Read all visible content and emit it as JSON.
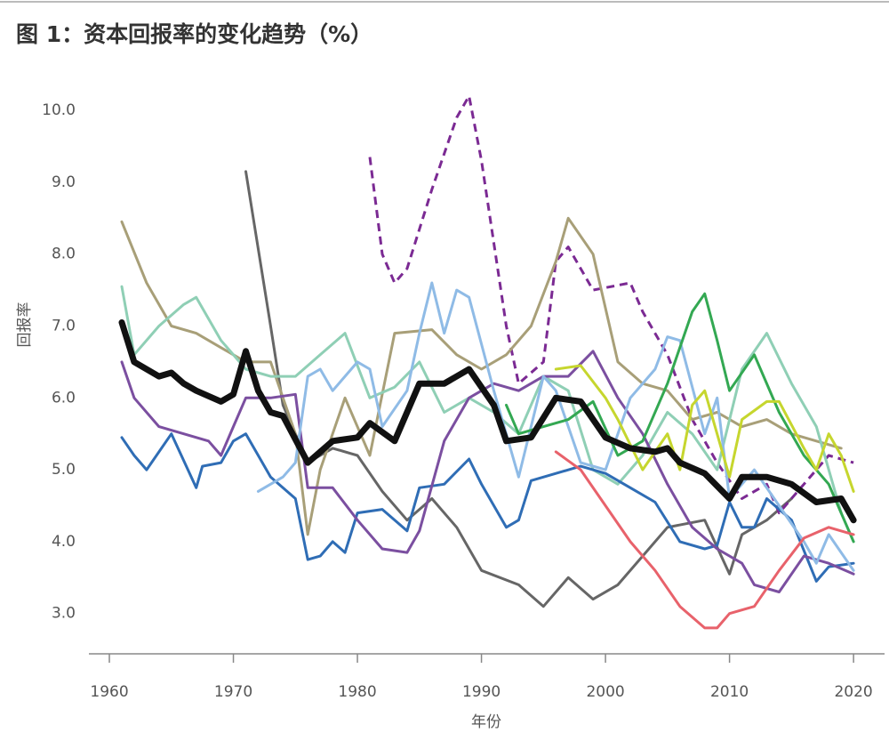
{
  "chart_data": {
    "type": "line",
    "title": "图 1：资本回报率的变化趋势（%）",
    "x_label": "年份",
    "y_label": "回报率",
    "xlim": [
      1958.35,
      2022.5
    ],
    "xticks": [
      1960,
      1970,
      1980,
      1990,
      2000,
      2010,
      2020
    ],
    "ylim": [
      2.44,
      10.36
    ],
    "yticks": [
      {
        "value": 3,
        "label": "3.0"
      },
      {
        "value": 4,
        "label": "4.0"
      },
      {
        "value": 5,
        "label": "5.0"
      },
      {
        "value": 6,
        "label": "6.0"
      },
      {
        "value": 7,
        "label": "7.0"
      },
      {
        "value": 8,
        "label": "8.0"
      },
      {
        "value": 9,
        "label": "9.0"
      },
      {
        "value": 10,
        "label": "10.0"
      }
    ],
    "grid": false,
    "series": [
      {
        "color": "#666666",
        "linewidth": 3,
        "style": "solid",
        "x": [
          1971,
          1973,
          1974,
          1976,
          1978,
          1980,
          1982,
          1984,
          1986,
          1988,
          1990,
          1993,
          1995,
          1997,
          1999,
          2001,
          2003,
          2005,
          2008,
          2010,
          2011,
          2013,
          2015
        ],
        "values": [
          9.15,
          7.0,
          5.9,
          5.1,
          5.3,
          5.2,
          4.7,
          4.3,
          4.6,
          4.2,
          3.6,
          3.4,
          3.1,
          3.5,
          3.2,
          3.4,
          3.8,
          4.2,
          4.3,
          3.55,
          4.1,
          4.3,
          4.6
        ]
      },
      {
        "color": "#7b2a93",
        "linewidth": 3,
        "style": "dashed",
        "x": [
          1981,
          1982,
          1983,
          1984,
          1986,
          1988,
          1989,
          1990,
          1992,
          1993,
          1995,
          1996,
          1997,
          1999,
          2002,
          2003,
          2005,
          2007,
          2009,
          2011,
          2013,
          2014,
          2016,
          2018,
          2020
        ],
        "values": [
          9.35,
          8.0,
          7.6,
          7.8,
          8.9,
          9.9,
          10.2,
          9.3,
          7.0,
          6.2,
          6.5,
          7.9,
          8.1,
          7.5,
          7.6,
          7.2,
          6.6,
          5.7,
          5.1,
          4.6,
          4.8,
          4.4,
          4.8,
          5.2,
          5.1
        ]
      },
      {
        "color": "#a89f78",
        "linewidth": 3,
        "style": "solid",
        "x": [
          1961,
          1963,
          1965,
          1967,
          1969,
          1971,
          1973,
          1975,
          1976,
          1977,
          1979,
          1981,
          1983,
          1986,
          1988,
          1990,
          1992,
          1994,
          1996,
          1997,
          1999,
          2001,
          2003,
          2005,
          2007,
          2009,
          2011,
          2013,
          2015,
          2017,
          2019
        ],
        "values": [
          8.45,
          7.6,
          7.0,
          6.9,
          6.7,
          6.5,
          6.5,
          5.5,
          4.1,
          5.0,
          6.0,
          5.2,
          6.9,
          6.95,
          6.6,
          6.4,
          6.6,
          7.0,
          7.9,
          8.5,
          8.0,
          6.5,
          6.2,
          6.1,
          5.7,
          5.8,
          5.6,
          5.7,
          5.5,
          5.4,
          5.3
        ]
      },
      {
        "color": "#8fcfb5",
        "linewidth": 3,
        "style": "solid",
        "x": [
          1961,
          1962,
          1964,
          1966,
          1967,
          1969,
          1971,
          1973,
          1975,
          1977,
          1979,
          1981,
          1983,
          1985,
          1987,
          1989,
          1991,
          1993,
          1995,
          1997,
          1999,
          2001,
          2003,
          2005,
          2007,
          2009,
          2011,
          2013,
          2015,
          2017,
          2019
        ],
        "values": [
          7.55,
          6.6,
          7.0,
          7.3,
          7.4,
          6.8,
          6.4,
          6.3,
          6.3,
          6.6,
          6.9,
          6.0,
          6.15,
          6.5,
          5.8,
          6.0,
          5.8,
          5.5,
          6.3,
          6.1,
          5.0,
          4.8,
          5.2,
          5.8,
          5.5,
          5.0,
          6.4,
          6.9,
          6.2,
          5.6,
          4.4
        ]
      },
      {
        "color": "#2f6db5",
        "linewidth": 3,
        "style": "solid",
        "x": [
          1961,
          1962,
          1963,
          1965,
          1967,
          1967.5,
          1969,
          1970,
          1971,
          1973,
          1975,
          1976,
          1977,
          1978,
          1979,
          1980,
          1982,
          1984,
          1985,
          1987,
          1989,
          1990,
          1992,
          1993,
          1994,
          1996,
          1998,
          2000,
          2002,
          2004,
          2006,
          2008,
          2009,
          2010,
          2011,
          2012,
          2013,
          2015,
          2017,
          2018,
          2020
        ],
        "values": [
          5.45,
          5.2,
          5.0,
          5.5,
          4.75,
          5.05,
          5.1,
          5.4,
          5.5,
          4.9,
          4.6,
          3.75,
          3.8,
          4.0,
          3.85,
          4.4,
          4.45,
          4.15,
          4.75,
          4.8,
          5.15,
          4.8,
          4.2,
          4.3,
          4.85,
          4.95,
          5.05,
          4.95,
          4.75,
          4.55,
          4.0,
          3.9,
          3.95,
          4.55,
          4.2,
          4.2,
          4.6,
          4.3,
          3.45,
          3.65,
          3.7
        ]
      },
      {
        "color": "#7b4fa0",
        "linewidth": 3,
        "style": "solid",
        "x": [
          1961,
          1962,
          1964,
          1966,
          1968,
          1969,
          1970,
          1971,
          1973,
          1975,
          1976,
          1978,
          1980,
          1982,
          1984,
          1985,
          1987,
          1989,
          1991,
          1993,
          1995,
          1997,
          1999,
          2001,
          2003,
          2005,
          2007,
          2009,
          2011,
          2012,
          2014,
          2016,
          2018,
          2020
        ],
        "values": [
          6.5,
          6.0,
          5.6,
          5.5,
          5.4,
          5.2,
          5.6,
          6.0,
          6.0,
          6.05,
          4.75,
          4.75,
          4.3,
          3.9,
          3.85,
          4.15,
          5.4,
          6.0,
          6.2,
          6.1,
          6.3,
          6.3,
          6.65,
          6.0,
          5.5,
          4.8,
          4.2,
          3.9,
          3.7,
          3.4,
          3.3,
          3.8,
          3.7,
          3.55
        ]
      },
      {
        "color": "#8fbbe6",
        "linewidth": 3,
        "style": "solid",
        "x": [
          1972,
          1974,
          1975,
          1976,
          1977,
          1978,
          1980,
          1981,
          1982,
          1984,
          1985,
          1986,
          1987,
          1988,
          1989,
          1991,
          1993,
          1995,
          1996,
          1998,
          2000,
          2002,
          2004,
          2005,
          2006,
          2008,
          2009,
          2010,
          2012,
          2014,
          2016,
          2017,
          2018,
          2020
        ],
        "values": [
          4.7,
          4.9,
          5.1,
          6.3,
          6.4,
          6.1,
          6.5,
          6.4,
          5.6,
          6.1,
          6.9,
          7.6,
          6.9,
          7.5,
          7.4,
          6.1,
          4.9,
          6.3,
          6.1,
          5.1,
          5.0,
          6.0,
          6.4,
          6.85,
          6.8,
          5.5,
          6.0,
          4.6,
          5.0,
          4.5,
          4.0,
          3.7,
          4.1,
          3.6
        ]
      },
      {
        "color": "#33a852",
        "linewidth": 3,
        "style": "solid",
        "x": [
          1992,
          1993,
          1995,
          1997,
          1999,
          2001,
          2003,
          2005,
          2007,
          2008,
          2009,
          2010,
          2012,
          2014,
          2016,
          2018,
          2020
        ],
        "values": [
          5.9,
          5.5,
          5.6,
          5.7,
          5.95,
          5.2,
          5.4,
          6.2,
          7.2,
          7.45,
          6.8,
          6.1,
          6.6,
          5.8,
          5.2,
          4.8,
          4.0
        ]
      },
      {
        "color": "#c6d62e",
        "linewidth": 3,
        "style": "solid",
        "x": [
          1996,
          1998,
          2000,
          2001,
          2003,
          2005,
          2006,
          2007,
          2008,
          2010,
          2011,
          2013,
          2014,
          2016,
          2017,
          2018,
          2019,
          2020
        ],
        "values": [
          6.4,
          6.45,
          6.0,
          5.7,
          5.0,
          5.5,
          5.0,
          5.9,
          6.1,
          4.9,
          5.7,
          5.95,
          5.95,
          5.3,
          5.0,
          5.5,
          5.2,
          4.7
        ]
      },
      {
        "color": "#e8626b",
        "linewidth": 3,
        "style": "solid",
        "x": [
          1996,
          1998,
          2000,
          2002,
          2004,
          2006,
          2008,
          2009,
          2010,
          2012,
          2014,
          2016,
          2018,
          2020
        ],
        "values": [
          5.25,
          5.0,
          4.5,
          4.0,
          3.6,
          3.1,
          2.8,
          2.8,
          3.0,
          3.1,
          3.6,
          4.05,
          4.2,
          4.1
        ]
      },
      {
        "color": "#111111",
        "linewidth": 7,
        "style": "solid",
        "x": [
          1961,
          1962,
          1964,
          1965,
          1966,
          1967,
          1969,
          1970,
          1971,
          1972,
          1973,
          1974,
          1976,
          1978,
          1980,
          1981,
          1983,
          1985,
          1987,
          1989,
          1991,
          1992,
          1994,
          1996,
          1998,
          2000,
          2002,
          2004,
          2005,
          2006,
          2008,
          2010,
          2011,
          2013,
          2015,
          2017,
          2019,
          2020
        ],
        "values": [
          7.05,
          6.5,
          6.3,
          6.35,
          6.2,
          6.1,
          5.95,
          6.05,
          6.65,
          6.1,
          5.8,
          5.75,
          5.1,
          5.4,
          5.45,
          5.65,
          5.4,
          6.2,
          6.2,
          6.4,
          5.9,
          5.4,
          5.45,
          6.0,
          5.95,
          5.45,
          5.3,
          5.25,
          5.3,
          5.1,
          4.95,
          4.6,
          4.9,
          4.9,
          4.8,
          4.55,
          4.6,
          4.3
        ]
      }
    ]
  }
}
